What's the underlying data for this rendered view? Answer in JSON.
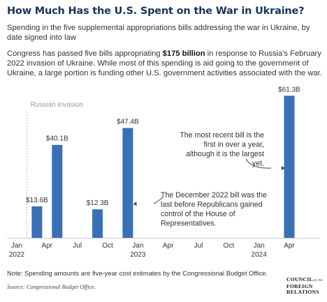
{
  "header": {
    "title": "How Much Has the U.S. Spent on the War in Ukraine?",
    "subtitle": "Spending in the five supplemental appropriations bills addressing the war in Ukraine, by date signed into law",
    "intro_before": "Congress has passed five bills appropriating ",
    "intro_bold": "$175 billion",
    "intro_after": " in response to Russia's February 2022 invasion of Ukraine. While most of this spending is aid going to the government of Ukraine, a large portion is funding other U.S. government activities associated with the war."
  },
  "chart_data": {
    "type": "bar",
    "x_unit": "month",
    "x_range": [
      "2022-01",
      "2024-04"
    ],
    "x_ticks": [
      {
        "date": "2022-01",
        "label": "Jan",
        "sublabel": "2022"
      },
      {
        "date": "2022-04",
        "label": "Apr",
        "sublabel": ""
      },
      {
        "date": "2022-07",
        "label": "Jul",
        "sublabel": ""
      },
      {
        "date": "2022-10",
        "label": "Oct",
        "sublabel": ""
      },
      {
        "date": "2023-01",
        "label": "Jan",
        "sublabel": "2023"
      },
      {
        "date": "2023-04",
        "label": "Apr",
        "sublabel": ""
      },
      {
        "date": "2023-07",
        "label": "Jul",
        "sublabel": ""
      },
      {
        "date": "2023-10",
        "label": "Oct",
        "sublabel": ""
      },
      {
        "date": "2024-01",
        "label": "Jan",
        "sublabel": "2024"
      },
      {
        "date": "2024-04",
        "label": "Apr",
        "sublabel": ""
      }
    ],
    "bars": [
      {
        "date": "2022-03",
        "value": 13.6,
        "label": "$13.6B"
      },
      {
        "date": "2022-05",
        "value": 40.1,
        "label": "$40.1B"
      },
      {
        "date": "2022-09",
        "value": 12.3,
        "label": "$12.3B"
      },
      {
        "date": "2022-12",
        "value": 47.4,
        "label": "$47.4B"
      },
      {
        "date": "2024-04",
        "value": 61.3,
        "label": "$61.3B"
      }
    ],
    "unit": "billions of dollars",
    "ylim": [
      0,
      65
    ],
    "grid": false,
    "bar_color": "#3a70b8",
    "events": [
      {
        "date": "2022-02",
        "label": "Russian invasion"
      }
    ],
    "annotations": [
      {
        "text": "The most recent bill is the first in over a year, although it is the largest yet.",
        "target": "2024-04"
      },
      {
        "text": "The December 2022 bill was the last before Republicans gained control of the House of Representatives.",
        "target": "2022-12"
      }
    ]
  },
  "footer": {
    "note": "Note: Spending amounts are five-year cost estimates by the Congressional Budget Office.",
    "source": "Source: Congressional Budget Office.",
    "logo_lines": [
      "COUNCIL",
      "FOREIGN",
      "RELATIONS"
    ],
    "logo_on": "on the"
  }
}
